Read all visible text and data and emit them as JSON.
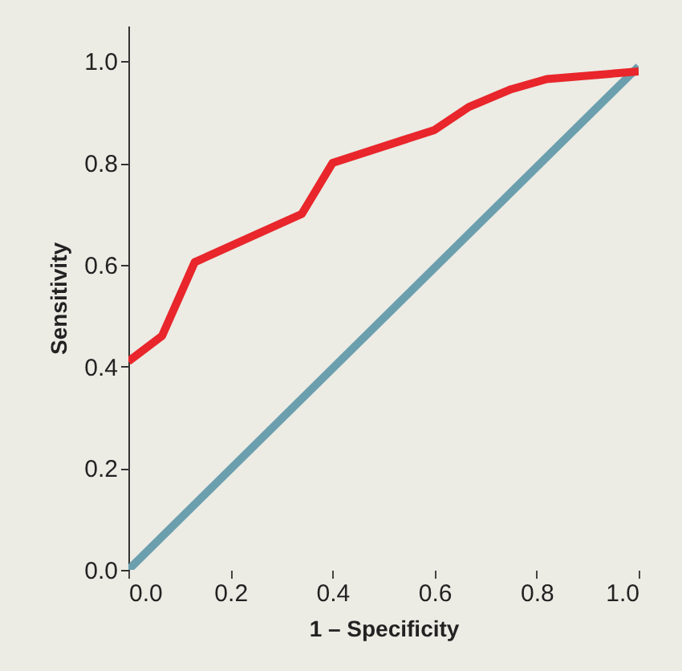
{
  "chart_data": {
    "type": "line",
    "xlabel": "1 – Specificity",
    "ylabel": "Sensitivity",
    "xlim": [
      0,
      1
    ],
    "ylim": [
      0,
      1.07
    ],
    "xticks": [
      {
        "value": 0,
        "label": "0.0"
      },
      {
        "value": 0.2,
        "label": "0.2"
      },
      {
        "value": 0.4,
        "label": "0.4"
      },
      {
        "value": 0.6,
        "label": "0.6"
      },
      {
        "value": 0.8,
        "label": "0.8"
      },
      {
        "value": 1,
        "label": "1.0"
      }
    ],
    "yticks": [
      {
        "value": 0,
        "label": "0.0"
      },
      {
        "value": 0.2,
        "label": "0.2"
      },
      {
        "value": 0.4,
        "label": "0.4"
      },
      {
        "value": 0.6,
        "label": "0.6"
      },
      {
        "value": 0.8,
        "label": "0.8"
      },
      {
        "value": 1,
        "label": "1.0"
      }
    ],
    "grid": false,
    "marker": "none",
    "series": [
      {
        "color": "#6b9fae",
        "x": [
          0,
          1
        ],
        "values": [
          0,
          0.99
        ]
      },
      {
        "color": "#e8262b",
        "x": [
          0,
          0.066,
          0.13,
          0.34,
          0.4,
          0.6,
          0.667,
          0.75,
          0.82,
          1
        ],
        "values": [
          0.41,
          0.46,
          0.605,
          0.7,
          0.8,
          0.865,
          0.91,
          0.945,
          0.965,
          0.98
        ]
      }
    ]
  }
}
